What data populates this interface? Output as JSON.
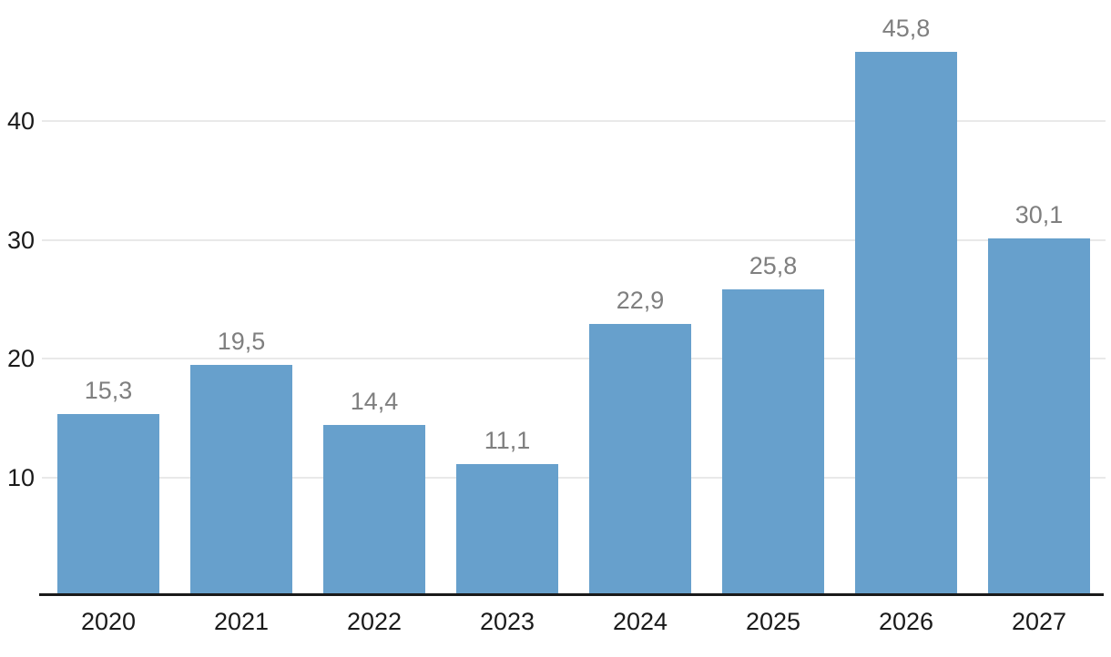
{
  "chart_data": {
    "type": "bar",
    "title": "",
    "xlabel": "",
    "ylabel": "",
    "categories": [
      "2020",
      "2021",
      "2022",
      "2023",
      "2024",
      "2025",
      "2026",
      "2027"
    ],
    "values": [
      15.3,
      19.5,
      14.4,
      11.1,
      22.9,
      25.8,
      45.8,
      30.1
    ],
    "value_labels": [
      "15,3",
      "19,5",
      "14,4",
      "11,1",
      "22,9",
      "25,8",
      "45,8",
      "30,1"
    ],
    "yticks": [
      10,
      20,
      30,
      40
    ],
    "ytick_labels": [
      "10",
      "20",
      "30",
      "40"
    ],
    "ylim": [
      0,
      50
    ],
    "grid": true,
    "legend_position": "none",
    "decimal_separator": ",",
    "colors": {
      "bar": "#67a0cc",
      "value_label": "#7f7f7f",
      "axis_text": "#1a1a1a",
      "gridline": "#e9e9e9",
      "axis_line": "#1a1a1a",
      "background": "#ffffff"
    }
  }
}
